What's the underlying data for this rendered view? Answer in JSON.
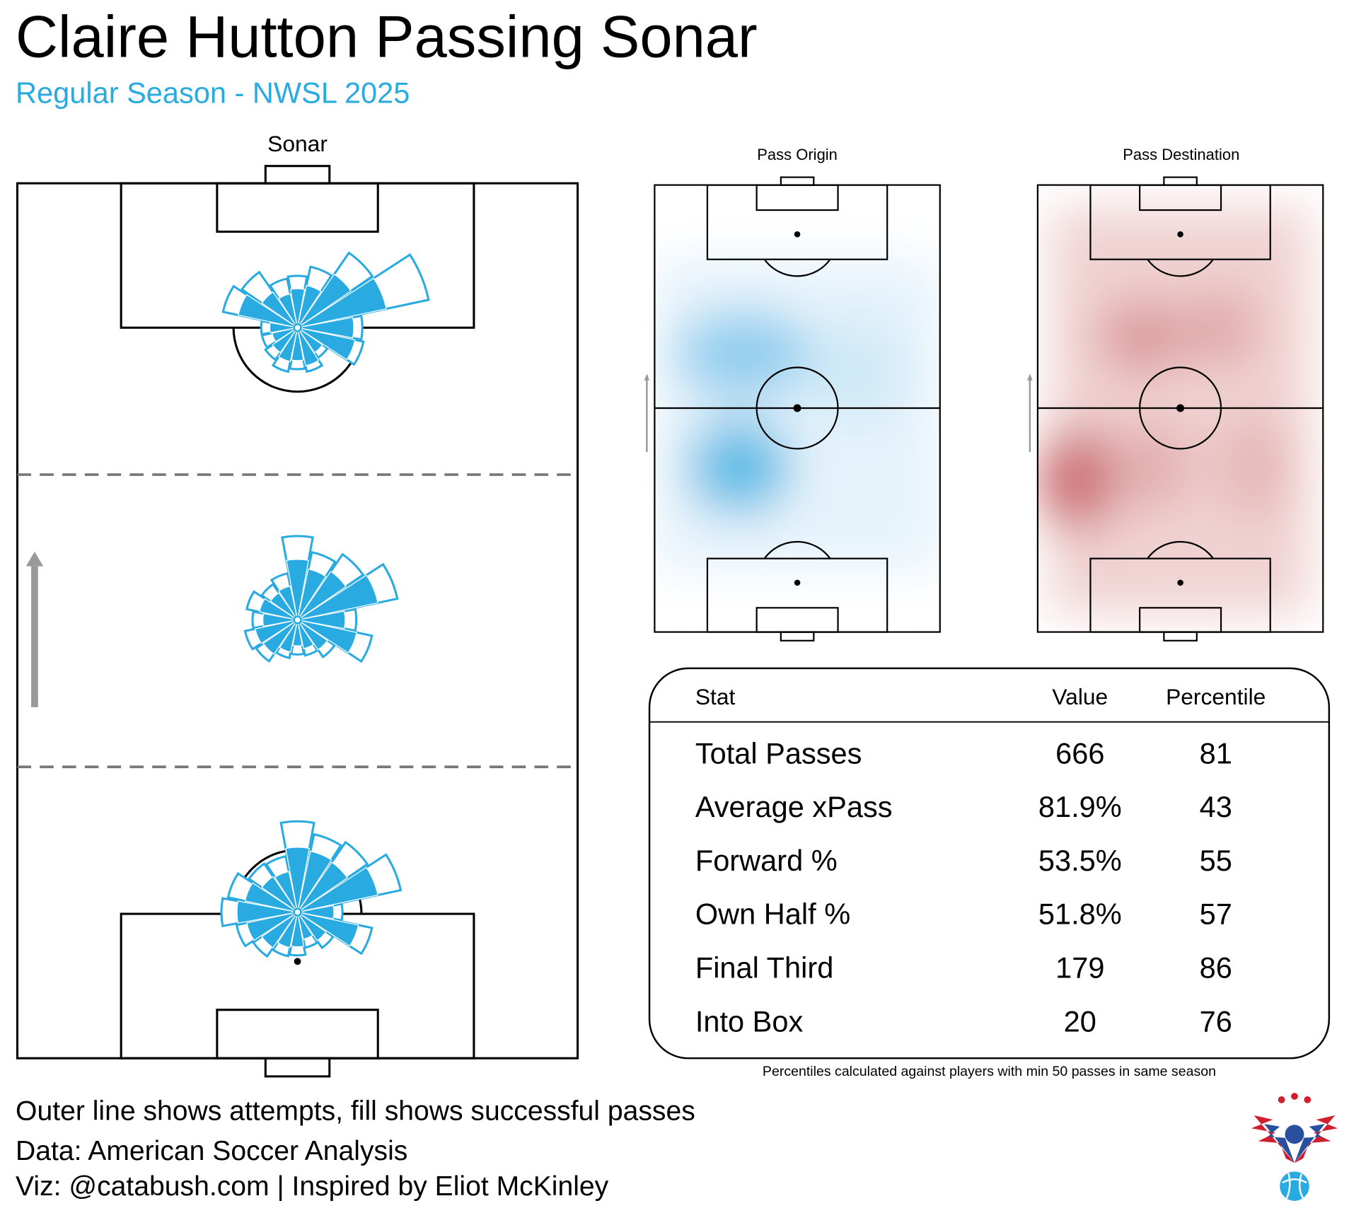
{
  "header": {
    "title": "Claire Hutton Passing Sonar",
    "subtitle": "Regular Season - NWSL 2025"
  },
  "sonar": {
    "title": "Sonar",
    "zones": [
      {
        "attempts": [
          60,
          72,
          105,
          155,
          75,
          78,
          42,
          52,
          48,
          52,
          45,
          42,
          42,
          88,
          78,
          58
        ],
        "completed": [
          45,
          50,
          75,
          105,
          65,
          68,
          35,
          45,
          38,
          40,
          35,
          30,
          32,
          70,
          50,
          40
        ]
      },
      {
        "attempts": [
          97,
          80,
          92,
          118,
          68,
          88,
          52,
          42,
          40,
          45,
          58,
          62,
          52,
          60,
          50,
          55
        ],
        "completed": [
          70,
          60,
          68,
          95,
          55,
          70,
          42,
          34,
          30,
          38,
          48,
          50,
          40,
          45,
          38,
          40
        ]
      },
      {
        "attempts": [
          105,
          92,
          98,
          122,
          52,
          88,
          50,
          42,
          50,
          52,
          62,
          72,
          88,
          82,
          68,
          66
        ],
        "completed": [
          75,
          72,
          70,
          95,
          42,
          72,
          40,
          32,
          40,
          42,
          50,
          60,
          70,
          62,
          50,
          48
        ]
      }
    ]
  },
  "heatmaps": [
    {
      "title": "Pass Origin"
    },
    {
      "title": "Pass Destination"
    }
  ],
  "table": {
    "columns": [
      "Stat",
      "Value",
      "Percentile"
    ],
    "rows": [
      [
        "Total Passes",
        "666",
        "81"
      ],
      [
        "Average xPass",
        "81.9%",
        "43"
      ],
      [
        "Forward %",
        "53.5%",
        "55"
      ],
      [
        "Own Half %",
        "51.8%",
        "57"
      ],
      [
        "Final Third",
        "179",
        "86"
      ],
      [
        "Into Box",
        "20",
        "76"
      ]
    ],
    "note": "Percentiles calculated against players with min 50 passes in same season"
  },
  "footer": [
    "Outer line shows attempts, fill shows successful passes",
    "Data: American Soccer Analysis",
    "Viz: @catabush.com | Inspired by Eliot McKinley"
  ]
}
